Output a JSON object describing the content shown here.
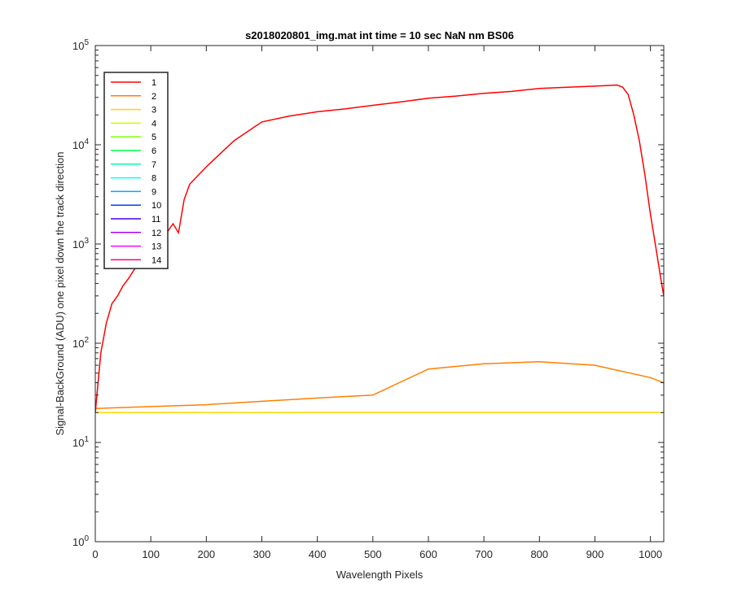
{
  "chart_data": {
    "type": "line",
    "title": "s2018020801_img.mat int time = 10 sec  NaN nm BS06",
    "xlabel": "Wavelength Pixels",
    "ylabel": "Signal-BackGround (ADU) one pixel down the track direction",
    "xlim": [
      0,
      1024
    ],
    "ylim": [
      1,
      100000
    ],
    "yscale": "log",
    "xticks": [
      0,
      100,
      200,
      300,
      400,
      500,
      600,
      700,
      800,
      900,
      1000
    ],
    "yticks": [
      {
        "value": 1,
        "base": "10",
        "exp": "0"
      },
      {
        "value": 10,
        "base": "10",
        "exp": "1"
      },
      {
        "value": 100,
        "base": "10",
        "exp": "2"
      },
      {
        "value": 1000,
        "base": "10",
        "exp": "3"
      },
      {
        "value": 10000,
        "base": "10",
        "exp": "4"
      },
      {
        "value": 100000,
        "base": "10",
        "exp": "5"
      }
    ],
    "grid": false,
    "legend_position": "top-left",
    "series": [
      {
        "name": "1",
        "color": "#ff0000",
        "x": [
          0,
          5,
          10,
          20,
          30,
          40,
          50,
          60,
          70,
          80,
          100,
          120,
          140,
          150,
          160,
          170,
          200,
          250,
          300,
          350,
          400,
          450,
          500,
          550,
          600,
          650,
          700,
          750,
          800,
          850,
          900,
          920,
          940,
          950,
          960,
          970,
          980,
          990,
          1000,
          1010,
          1020,
          1024
        ],
        "values": [
          20,
          40,
          80,
          160,
          250,
          300,
          380,
          450,
          550,
          650,
          900,
          1100,
          1600,
          1300,
          2800,
          4000,
          6000,
          11000,
          17000,
          19500,
          21500,
          23000,
          25000,
          27000,
          29500,
          31000,
          33000,
          34500,
          37000,
          38000,
          39000,
          39500,
          40000,
          38000,
          32000,
          20000,
          11000,
          5000,
          2000,
          900,
          400,
          300
        ]
      },
      {
        "name": "2",
        "color": "#ff7f00",
        "x": [
          0,
          100,
          200,
          300,
          400,
          500,
          600,
          700,
          800,
          900,
          1000,
          1024
        ],
        "values": [
          22,
          23,
          24,
          26,
          28,
          30,
          55,
          62,
          65,
          60,
          45,
          40
        ]
      },
      {
        "name": "3",
        "color": "#ffd700",
        "x": [
          0,
          512,
          1024
        ],
        "values": [
          20,
          20,
          20
        ]
      },
      {
        "name": "4",
        "color": "#c8ff00",
        "x": [
          0,
          512,
          1024
        ],
        "values": [
          20,
          20,
          20
        ]
      },
      {
        "name": "5",
        "color": "#7fff00",
        "x": [
          0,
          512,
          1024
        ],
        "values": [
          20,
          20,
          20
        ]
      },
      {
        "name": "6",
        "color": "#00ff40",
        "x": [
          0,
          512,
          1024
        ],
        "values": [
          20,
          20,
          20
        ]
      },
      {
        "name": "7",
        "color": "#00ffaa",
        "x": [
          0,
          512,
          1024
        ],
        "values": [
          20,
          20,
          20
        ]
      },
      {
        "name": "8",
        "color": "#00ffff",
        "x": [
          0,
          512,
          1024
        ],
        "values": [
          20,
          20,
          20
        ]
      },
      {
        "name": "9",
        "color": "#00aaff",
        "x": [
          0,
          512,
          1024
        ],
        "values": [
          20,
          20,
          20
        ]
      },
      {
        "name": "10",
        "color": "#0040ff",
        "x": [
          0,
          512,
          1024
        ],
        "values": [
          20,
          20,
          20
        ]
      },
      {
        "name": "11",
        "color": "#4000ff",
        "x": [
          0,
          512,
          1024
        ],
        "values": [
          20,
          20,
          20
        ]
      },
      {
        "name": "12",
        "color": "#aa00ff",
        "x": [
          0,
          512,
          1024
        ],
        "values": [
          20,
          20,
          20
        ]
      },
      {
        "name": "13",
        "color": "#ff00ff",
        "x": [
          0,
          512,
          1024
        ],
        "values": [
          20,
          20,
          20
        ]
      },
      {
        "name": "14",
        "color": "#ff0080",
        "x": [
          0,
          512,
          1024
        ],
        "values": [
          20,
          20,
          20
        ]
      }
    ]
  }
}
